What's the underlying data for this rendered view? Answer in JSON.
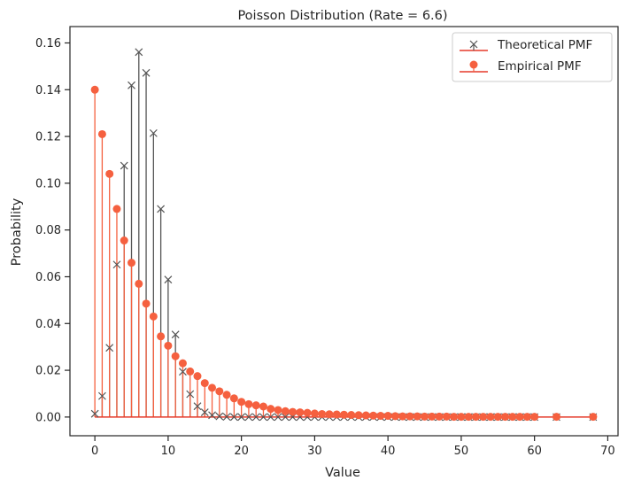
{
  "chart_data": {
    "type": "stem",
    "title": "Poisson Distribution (Rate = 6.6)",
    "xlabel": "Value",
    "ylabel": "Probability",
    "xlim": [
      -3.4,
      71.4
    ],
    "ylim": [
      -0.008,
      0.167
    ],
    "xticks": [
      0,
      10,
      20,
      30,
      40,
      50,
      60,
      70
    ],
    "yticks": [
      0.0,
      0.02,
      0.04,
      0.06,
      0.08,
      0.1,
      0.12,
      0.14,
      0.16
    ],
    "ytick_labels": [
      "0.00",
      "0.02",
      "0.04",
      "0.06",
      "0.08",
      "0.10",
      "0.12",
      "0.14",
      "0.16"
    ],
    "grid": false,
    "legend_position": "top-right",
    "series": [
      {
        "name": "Theoretical PMF",
        "marker": "x",
        "color": "#555555",
        "x": [
          0,
          1,
          2,
          3,
          4,
          5,
          6,
          7,
          8,
          9,
          10,
          11,
          12,
          13,
          14,
          15,
          16,
          17,
          18,
          19,
          20,
          21,
          22,
          23,
          24,
          25,
          26,
          27,
          28,
          29,
          30,
          31,
          32,
          33,
          34,
          35,
          36,
          37,
          38,
          39,
          40,
          41,
          42,
          43,
          44,
          45,
          46,
          47,
          48,
          49,
          50,
          51,
          52,
          53,
          54,
          55,
          56,
          57,
          58,
          59,
          60,
          63,
          68
        ],
        "y": [
          0.0014,
          0.009,
          0.0296,
          0.0652,
          0.1075,
          0.1419,
          0.1561,
          0.1472,
          0.1214,
          0.089,
          0.0588,
          0.0353,
          0.0194,
          0.0098,
          0.0046,
          0.002,
          0.0008,
          0.0003,
          0.0001,
          4e-05,
          1e-05,
          0,
          0,
          0,
          0,
          0,
          0,
          0,
          0,
          0,
          0,
          0,
          0,
          0,
          0,
          0,
          0,
          0,
          0,
          0,
          0,
          0,
          0,
          0,
          0,
          0,
          0,
          0,
          0,
          0,
          0,
          0,
          0,
          0,
          0,
          0,
          0,
          0,
          0,
          0,
          0,
          0,
          0
        ]
      },
      {
        "name": "Empirical PMF",
        "marker": "o",
        "color": "#f5603f",
        "x": [
          0,
          1,
          2,
          3,
          4,
          5,
          6,
          7,
          8,
          9,
          10,
          11,
          12,
          13,
          14,
          15,
          16,
          17,
          18,
          19,
          20,
          21,
          22,
          23,
          24,
          25,
          26,
          27,
          28,
          29,
          30,
          31,
          32,
          33,
          34,
          35,
          36,
          37,
          38,
          39,
          40,
          41,
          42,
          43,
          44,
          45,
          46,
          47,
          48,
          49,
          50,
          51,
          52,
          53,
          54,
          55,
          56,
          57,
          58,
          59,
          60,
          63,
          68
        ],
        "y": [
          0.14,
          0.121,
          0.104,
          0.089,
          0.0755,
          0.066,
          0.057,
          0.0485,
          0.043,
          0.0345,
          0.0305,
          0.026,
          0.023,
          0.0195,
          0.0175,
          0.0145,
          0.0125,
          0.011,
          0.0095,
          0.008,
          0.0065,
          0.0055,
          0.005,
          0.0045,
          0.0035,
          0.003,
          0.0025,
          0.0022,
          0.002,
          0.0018,
          0.0015,
          0.0013,
          0.0012,
          0.0011,
          0.001,
          0.0009,
          0.0008,
          0.0007,
          0.0006,
          0.0005,
          0.0005,
          0.0004,
          0.0003,
          0.0003,
          0.0003,
          0.0002,
          0.0002,
          0.0002,
          0.0002,
          0.0001,
          0.0001,
          0.0001,
          0.0001,
          0.0001,
          0.0001,
          0.0001,
          0.0001,
          0.0001,
          0.0001,
          0.0001,
          0.0001,
          0.0001,
          0.0001
        ]
      }
    ]
  }
}
